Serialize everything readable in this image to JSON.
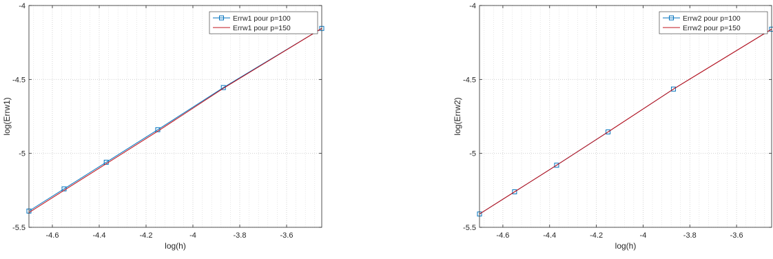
{
  "chart_data": [
    {
      "type": "line",
      "xlabel": "log(h)",
      "ylabel": "log(Errw1)",
      "xlim": [
        -4.7,
        -3.45
      ],
      "ylim": [
        -5.5,
        -4.0
      ],
      "xticks": [
        -4.6,
        -4.4,
        -4.2,
        -4.0,
        -3.8,
        -3.6
      ],
      "xtick_labels": [
        "-4.6",
        "-4.4",
        "-4.2",
        "-4",
        "-3.8",
        "-3.6"
      ],
      "yticks": [
        -5.5,
        -5.0,
        -4.5,
        -4.0
      ],
      "ytick_labels": [
        "-5.5",
        "-5",
        "-4.5",
        "-4"
      ],
      "grid": "on (dotted, minor x grid)",
      "legend_position": "top-right",
      "series": [
        {
          "name": "Errw1 pour p=100",
          "color": "#0072BD",
          "marker": "square",
          "x": [
            -4.7,
            -4.55,
            -4.37,
            -4.15,
            -3.87,
            -3.45
          ],
          "y": [
            -5.39,
            -5.24,
            -5.06,
            -4.84,
            -4.555,
            -4.155
          ]
        },
        {
          "name": "Errw1 pour p=150",
          "color": "#C0141E",
          "marker": "none",
          "x": [
            -4.7,
            -4.55,
            -4.37,
            -4.15,
            -3.87,
            -3.45
          ],
          "y": [
            -5.4,
            -5.25,
            -5.07,
            -4.85,
            -4.56,
            -4.155
          ]
        }
      ]
    },
    {
      "type": "line",
      "xlabel": "log(h)",
      "ylabel": "log(Errw2)",
      "xlim": [
        -4.7,
        -3.45
      ],
      "ylim": [
        -5.5,
        -4.0
      ],
      "xticks": [
        -4.6,
        -4.4,
        -4.2,
        -4.0,
        -3.8,
        -3.6
      ],
      "xtick_labels": [
        "-4.6",
        "-4.4",
        "-4.2",
        "-4",
        "-3.8",
        "-3.6"
      ],
      "yticks": [
        -5.5,
        -5.0,
        -4.5,
        -4.0
      ],
      "ytick_labels": [
        "-5.5",
        "-5",
        "-4.5",
        "-4"
      ],
      "grid": "on (dotted, minor x grid)",
      "legend_position": "top-right",
      "series": [
        {
          "name": "Errw2 pour p=100",
          "color": "#0072BD",
          "marker": "square",
          "x": [
            -4.7,
            -4.55,
            -4.37,
            -4.15,
            -3.87,
            -3.45
          ],
          "y": [
            -5.41,
            -5.26,
            -5.08,
            -4.855,
            -4.565,
            -4.16
          ]
        },
        {
          "name": "Errw2 pour p=150",
          "color": "#C0141E",
          "marker": "none",
          "x": [
            -4.7,
            -4.55,
            -4.37,
            -4.15,
            -3.87,
            -3.45
          ],
          "y": [
            -5.41,
            -5.26,
            -5.08,
            -4.855,
            -4.565,
            -4.16
          ]
        }
      ]
    }
  ]
}
